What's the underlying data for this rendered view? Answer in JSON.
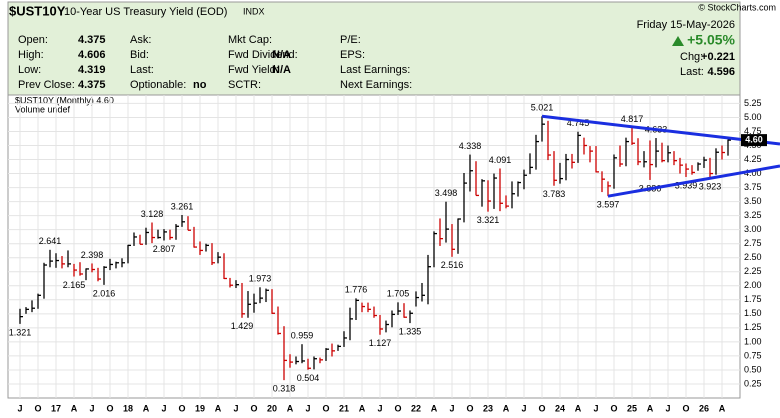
{
  "header": {
    "symbol": "$UST10Y",
    "name": "10-Year US Treasury Yield (EOD)",
    "exchange": "INDX",
    "copyright": "© StockCharts.com",
    "date": "Friday 15-May-2026",
    "change_pct": "+5.05%",
    "columns": [
      [
        {
          "label": "Open:",
          "value": 4.375
        },
        {
          "label": "High:",
          "value": 4.606
        },
        {
          "label": "Low:",
          "value": 4.319
        },
        {
          "label": "Prev Close:",
          "value": 4.375
        }
      ],
      [
        {
          "label": "Ask:"
        },
        {
          "label": "Bid:"
        },
        {
          "label": "Last:"
        },
        {
          "label": "Optionable:",
          "value": "no"
        }
      ],
      [
        {
          "label": "Mkt Cap:"
        },
        {
          "label": "Fwd Dividend:",
          "value": "N/A"
        },
        {
          "label": "Fwd Yield:",
          "value": "N/A"
        },
        {
          "label": "SCTR:"
        }
      ],
      [
        {
          "label": "P/E:"
        },
        {
          "label": "EPS:"
        },
        {
          "label": "Last Earnings:"
        },
        {
          "label": "Next Earnings:"
        }
      ]
    ],
    "quote": [
      {
        "label": "Chg:",
        "value": "+0.221"
      },
      {
        "label": "Last:",
        "value": 4.596
      }
    ]
  },
  "chart_data": {
    "type": "hlc",
    "legend": "$UST10Y (Monthly) 4.60",
    "volume_note": "Volume undef",
    "price_box": "4.60",
    "up_color": "#000000",
    "down_color": "#cc0000",
    "grid": true,
    "categories": [
      "J",
      null,
      null,
      "O",
      null,
      null,
      "17",
      null,
      null,
      "A",
      null,
      null,
      "J",
      null,
      null,
      "O",
      null,
      null,
      "18",
      null,
      null,
      "A",
      null,
      null,
      "J",
      null,
      null,
      "O",
      null,
      null,
      "19",
      null,
      null,
      "A",
      null,
      null,
      "J",
      null,
      null,
      "O",
      null,
      null,
      "20",
      null,
      null,
      "A",
      null,
      null,
      "J",
      null,
      null,
      "O",
      null,
      null,
      "21",
      null,
      null,
      "A",
      null,
      null,
      "J",
      null,
      null,
      "O",
      null,
      null,
      "22",
      null,
      null,
      "A",
      null,
      null,
      "J",
      null,
      null,
      "O",
      null,
      null,
      "23",
      null,
      null,
      "A",
      null,
      null,
      "J",
      null,
      null,
      "O",
      null,
      null,
      "24",
      null,
      null,
      "A",
      null,
      null,
      "J",
      null,
      null,
      "O",
      null,
      null,
      "25",
      null,
      null,
      "A",
      null,
      null,
      "J",
      null,
      null,
      "O",
      null,
      null,
      "26",
      null,
      null,
      "A",
      null
    ],
    "high": [
      1.59,
      1.62,
      1.74,
      1.86,
      2.41,
      2.641,
      2.58,
      2.53,
      2.63,
      2.39,
      2.42,
      2.31,
      2.398,
      2.32,
      2.35,
      2.48,
      2.43,
      2.49,
      2.73,
      2.95,
      2.91,
      3.035,
      3.128,
      3.0,
      3.01,
      3.0,
      3.1,
      3.261,
      3.24,
      3.05,
      2.79,
      2.75,
      2.76,
      2.6,
      2.58,
      2.14,
      2.1,
      2.05,
      1.906,
      1.86,
      1.973,
      1.95,
      1.94,
      1.63,
      1.28,
      0.78,
      0.74,
      0.959,
      0.7,
      0.74,
      0.72,
      0.89,
      0.97,
      0.95,
      1.19,
      1.61,
      1.776,
      1.7,
      1.7,
      1.63,
      1.48,
      1.38,
      1.56,
      1.705,
      1.69,
      1.56,
      1.9,
      2.05,
      2.55,
      2.97,
      3.2,
      3.498,
      3.1,
      3.2,
      4.01,
      4.338,
      4.22,
      3.9,
      3.88,
      4.0,
      4.091,
      3.61,
      3.86,
      3.86,
      4.07,
      4.36,
      4.69,
      5.021,
      4.94,
      4.4,
      4.19,
      4.35,
      4.35,
      4.745,
      4.64,
      4.49,
      4.49,
      4.04,
      3.86,
      4.34,
      4.5,
      4.64,
      4.817,
      4.63,
      4.4,
      4.59,
      4.633,
      4.55,
      4.5,
      4.4,
      4.28,
      4.18,
      4.15,
      4.2,
      4.3,
      4.28,
      4.45,
      4.5,
      4.606
    ],
    "low": [
      1.321,
      1.5,
      1.53,
      1.59,
      1.77,
      2.33,
      2.32,
      2.31,
      2.33,
      2.165,
      2.18,
      2.1,
      2.24,
      2.08,
      2.016,
      2.28,
      2.31,
      2.33,
      2.4,
      2.71,
      2.74,
      2.73,
      2.76,
      2.84,
      2.807,
      2.82,
      2.82,
      3.05,
      2.99,
      2.68,
      2.55,
      2.61,
      2.37,
      2.4,
      2.12,
      1.97,
      1.96,
      1.429,
      1.43,
      1.52,
      1.69,
      1.71,
      1.5,
      1.13,
      0.318,
      0.54,
      0.6,
      0.62,
      0.504,
      0.51,
      0.62,
      0.66,
      0.74,
      0.84,
      0.91,
      1.03,
      1.39,
      1.53,
      1.53,
      1.43,
      1.127,
      1.17,
      1.26,
      1.48,
      1.43,
      1.335,
      1.63,
      1.72,
      1.67,
      2.33,
      2.71,
      2.77,
      2.516,
      2.57,
      3.13,
      3.68,
      3.61,
      3.41,
      3.321,
      3.37,
      3.33,
      3.38,
      3.38,
      3.59,
      3.72,
      3.99,
      4.07,
      4.57,
      4.24,
      3.783,
      3.82,
      3.88,
      4.09,
      4.19,
      4.34,
      4.2,
      4.02,
      3.67,
      3.597,
      3.73,
      4.12,
      4.13,
      4.51,
      4.15,
      4.11,
      3.886,
      4.11,
      4.2,
      4.2,
      4.15,
      4.0,
      3.939,
      3.98,
      4.05,
      4.1,
      3.923,
      3.98,
      4.25,
      4.319
    ],
    "close": [
      1.45,
      1.58,
      1.6,
      1.83,
      2.37,
      2.44,
      2.45,
      2.39,
      2.39,
      2.28,
      2.21,
      2.3,
      2.29,
      2.12,
      2.33,
      2.38,
      2.41,
      2.41,
      2.72,
      2.87,
      2.74,
      2.95,
      2.86,
      2.86,
      2.96,
      2.86,
      3.06,
      3.14,
      2.99,
      2.69,
      2.63,
      2.72,
      2.41,
      2.51,
      2.13,
      2.01,
      2.02,
      1.5,
      1.67,
      1.69,
      1.78,
      1.92,
      1.51,
      1.15,
      0.67,
      0.64,
      0.65,
      0.66,
      0.53,
      0.7,
      0.68,
      0.87,
      0.84,
      0.92,
      1.07,
      1.41,
      1.74,
      1.63,
      1.58,
      1.47,
      1.23,
      1.31,
      1.49,
      1.55,
      1.44,
      1.51,
      1.79,
      1.83,
      2.34,
      2.93,
      2.84,
      3.01,
      2.65,
      3.19,
      3.83,
      4.05,
      3.61,
      3.87,
      3.51,
      3.92,
      3.47,
      3.42,
      3.64,
      3.84,
      3.97,
      4.11,
      4.57,
      4.88,
      4.33,
      3.88,
      3.91,
      4.25,
      4.2,
      4.68,
      4.5,
      4.4,
      4.03,
      3.9,
      3.78,
      4.28,
      4.17,
      4.57,
      4.54,
      4.21,
      4.21,
      4.16,
      4.4,
      4.23,
      4.37,
      4.23,
      4.15,
      4.08,
      4.02,
      4.17,
      4.24,
      4.0,
      4.38,
      4.375,
      4.596
    ],
    "annotations": [
      1.321,
      2.641,
      2.165,
      2.398,
      2.016,
      3.128,
      2.807,
      3.261,
      1.973,
      1.429,
      0.959,
      0.318,
      0.504,
      1.776,
      1.127,
      1.705,
      1.335,
      3.498,
      2.516,
      4.338,
      4.091,
      3.321,
      5.021,
      3.783,
      4.745,
      3.597,
      4.817,
      4.633,
      3.886,
      3.939,
      3.923
    ],
    "ylim": [
      0,
      5.4
    ],
    "yticks": [
      0.25,
      {
        "value": 0.5,
        "label": "0.50"
      },
      0.75,
      {
        "value": 1,
        "label": "1.00"
      },
      1.25,
      {
        "value": 1.5,
        "label": "1.50"
      },
      1.75,
      {
        "value": 2,
        "label": "2.00"
      },
      2.25,
      {
        "value": 2.5,
        "label": "2.50"
      },
      2.75,
      {
        "value": 3,
        "label": "3.00"
      },
      3.25,
      {
        "value": 3.5,
        "label": "3.50"
      },
      3.75,
      {
        "value": 4,
        "label": "4.00"
      },
      4.25,
      {
        "value": 4.5,
        "label": "4.50"
      },
      4.75,
      {
        "value": 5,
        "label": "5.00"
      },
      5.25
    ]
  }
}
